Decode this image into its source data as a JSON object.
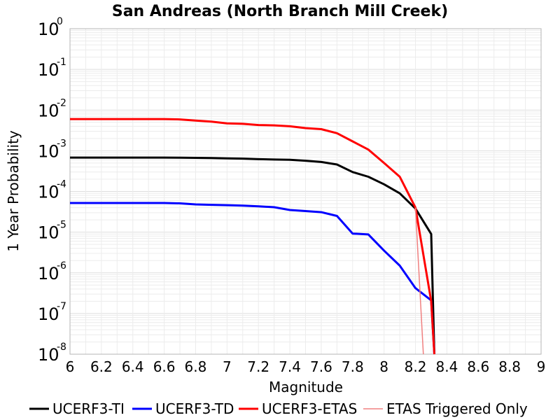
{
  "chart_data": {
    "type": "line",
    "title": "San Andreas (North Branch Mill Creek)",
    "xlabel": "Magnitude",
    "ylabel": "1 Year Probability",
    "xlim": [
      6,
      9
    ],
    "ylim": [
      1e-08,
      1
    ],
    "yscale": "log",
    "grid": true,
    "legend_position": "bottom",
    "xticks": [
      "6",
      "6.2",
      "6.4",
      "6.6",
      "6.8",
      "7",
      "7.2",
      "7.4",
      "7.6",
      "7.8",
      "8",
      "8.2",
      "8.4",
      "8.6",
      "8.8",
      "9"
    ],
    "yticks": [
      {
        "base": "10",
        "exp": "0"
      },
      {
        "base": "10",
        "exp": "-1"
      },
      {
        "base": "10",
        "exp": "-2"
      },
      {
        "base": "10",
        "exp": "-3"
      },
      {
        "base": "10",
        "exp": "-4"
      },
      {
        "base": "10",
        "exp": "-5"
      },
      {
        "base": "10",
        "exp": "-6"
      },
      {
        "base": "10",
        "exp": "-7"
      },
      {
        "base": "10",
        "exp": "-8"
      }
    ],
    "series": [
      {
        "name": "UCERF3-TI",
        "color": "#000000",
        "width": 3,
        "x": [
          6.0,
          6.1,
          6.2,
          6.3,
          6.4,
          6.5,
          6.6,
          6.7,
          6.8,
          6.9,
          7.0,
          7.1,
          7.2,
          7.3,
          7.4,
          7.5,
          7.6,
          7.7,
          7.8,
          7.9,
          8.0,
          8.1,
          8.2,
          8.3,
          8.32
        ],
        "y": [
          0.00068,
          0.00068,
          0.00068,
          0.00068,
          0.00068,
          0.00068,
          0.00068,
          0.000675,
          0.00067,
          0.000665,
          0.00065,
          0.00064,
          0.00062,
          0.00061,
          0.0006,
          0.00057,
          0.00053,
          0.00046,
          0.0003,
          0.00023,
          0.00015,
          9e-05,
          3.8e-05,
          9e-06,
          1e-08
        ]
      },
      {
        "name": "UCERF3-TD",
        "color": "#0000ff",
        "width": 3,
        "x": [
          6.0,
          6.1,
          6.2,
          6.3,
          6.4,
          6.5,
          6.6,
          6.7,
          6.8,
          6.9,
          7.0,
          7.1,
          7.2,
          7.3,
          7.4,
          7.5,
          7.6,
          7.7,
          7.8,
          7.9,
          8.0,
          8.1,
          8.2,
          8.3,
          8.32
        ],
        "y": [
          5.2e-05,
          5.2e-05,
          5.2e-05,
          5.2e-05,
          5.2e-05,
          5.2e-05,
          5.2e-05,
          5.1e-05,
          4.8e-05,
          4.7e-05,
          4.6e-05,
          4.5e-05,
          4.3e-05,
          4.1e-05,
          3.5e-05,
          3.3e-05,
          3.1e-05,
          2.5e-05,
          9.2e-06,
          8.8e-06,
          3.5e-06,
          1.5e-06,
          4.2e-07,
          2.1e-07,
          1e-08
        ]
      },
      {
        "name": "UCERF3-ETAS",
        "color": "#ff0000",
        "width": 3,
        "x": [
          6.0,
          6.1,
          6.2,
          6.3,
          6.4,
          6.5,
          6.6,
          6.7,
          6.8,
          6.9,
          7.0,
          7.1,
          7.2,
          7.3,
          7.4,
          7.5,
          7.6,
          7.7,
          7.8,
          7.9,
          8.0,
          8.1,
          8.2,
          8.3,
          8.32
        ],
        "y": [
          0.006,
          0.006,
          0.006,
          0.006,
          0.006,
          0.006,
          0.006,
          0.0059,
          0.0055,
          0.0052,
          0.0047,
          0.0046,
          0.0043,
          0.0042,
          0.004,
          0.0036,
          0.0034,
          0.0027,
          0.0017,
          0.00107,
          0.0005,
          0.00023,
          4e-05,
          2e-07,
          1e-08
        ]
      },
      {
        "name": "ETAS Triggered Only",
        "color": "#f08080",
        "width": 1.5,
        "x": [
          8.2,
          8.25
        ],
        "y": [
          4e-05,
          1e-08
        ]
      }
    ]
  }
}
